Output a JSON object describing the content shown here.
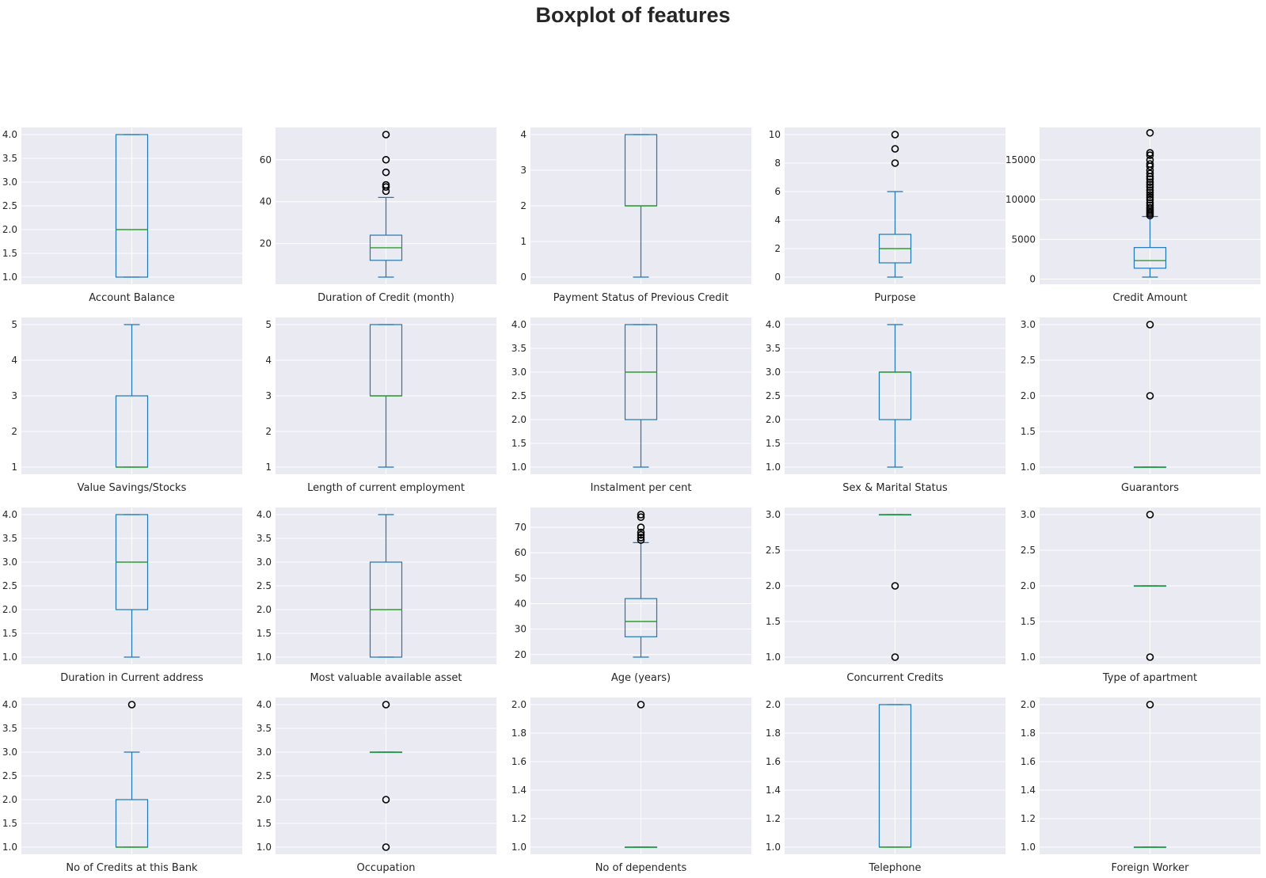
{
  "title": "Boxplot of features",
  "colors": {
    "panel_background": "#eaeaf2",
    "grid": "#ffffff",
    "box": "#1f77b4",
    "median": "#2ca02c",
    "flier": "#000000",
    "text": "#262626"
  },
  "chart_data": [
    {
      "type": "box",
      "xlabel": "Account Balance",
      "ylim": [
        0.85,
        4.15
      ],
      "yticks": [
        1.0,
        1.5,
        2.0,
        2.5,
        3.0,
        3.5,
        4.0
      ],
      "yticklabels": [
        "1.0",
        "1.5",
        "2.0",
        "2.5",
        "3.0",
        "3.5",
        "4.0"
      ],
      "whisker_low": 1,
      "q1": 1,
      "median": 2,
      "q3": 4,
      "whisker_high": 4,
      "outliers": []
    },
    {
      "type": "box",
      "xlabel": "Duration of Credit (month)",
      "ylim": [
        0.6,
        75.4
      ],
      "yticks": [
        20,
        40,
        60
      ],
      "yticklabels": [
        "20",
        "40",
        "60"
      ],
      "whisker_low": 4,
      "q1": 12,
      "median": 18,
      "q3": 24,
      "whisker_high": 42,
      "outliers": [
        45,
        47,
        48,
        54,
        60,
        72
      ]
    },
    {
      "type": "box",
      "xlabel": "Payment Status of Previous Credit",
      "ylim": [
        -0.2,
        4.2
      ],
      "yticks": [
        0,
        1,
        2,
        3,
        4
      ],
      "yticklabels": [
        "0",
        "1",
        "2",
        "3",
        "4"
      ],
      "whisker_low": 0,
      "q1": 2,
      "median": 2,
      "q3": 4,
      "whisker_high": 4,
      "outliers": []
    },
    {
      "type": "box",
      "xlabel": "Purpose",
      "ylim": [
        -0.5,
        10.5
      ],
      "yticks": [
        0,
        2,
        4,
        6,
        8,
        10
      ],
      "yticklabels": [
        "0",
        "2",
        "4",
        "6",
        "8",
        "10"
      ],
      "whisker_low": 0,
      "q1": 1,
      "median": 2,
      "q3": 3,
      "whisker_high": 6,
      "outliers": [
        8,
        9,
        10
      ]
    },
    {
      "type": "box",
      "xlabel": "Credit Amount",
      "ylim": [
        -650,
        19100
      ],
      "yticks": [
        0,
        5000,
        10000,
        15000
      ],
      "yticklabels": [
        "0",
        "5000",
        "10000",
        "15000"
      ],
      "whisker_low": 250,
      "q1": 1366,
      "median": 2320,
      "q3": 3972,
      "whisker_high": 7882,
      "outliers": [
        8000,
        8200,
        8400,
        8600,
        8800,
        9000,
        9300,
        9600,
        10000,
        10300,
        10600,
        10900,
        11200,
        11600,
        11900,
        12200,
        12600,
        12900,
        13300,
        13700,
        14200,
        14500,
        15000,
        15600,
        15900,
        18424
      ]
    },
    {
      "type": "box",
      "xlabel": "Value Savings/Stocks",
      "ylim": [
        0.8,
        5.2
      ],
      "yticks": [
        1,
        2,
        3,
        4,
        5
      ],
      "yticklabels": [
        "1",
        "2",
        "3",
        "4",
        "5"
      ],
      "whisker_low": 1,
      "q1": 1,
      "median": 1,
      "q3": 3,
      "whisker_high": 5,
      "outliers": []
    },
    {
      "type": "box",
      "xlabel": "Length of current employment",
      "ylim": [
        0.8,
        5.2
      ],
      "yticks": [
        1,
        2,
        3,
        4,
        5
      ],
      "yticklabels": [
        "1",
        "2",
        "3",
        "4",
        "5"
      ],
      "whisker_low": 1,
      "q1": 3,
      "median": 3,
      "q3": 5,
      "whisker_high": 5,
      "outliers": []
    },
    {
      "type": "box",
      "xlabel": "Instalment per cent",
      "ylim": [
        0.85,
        4.15
      ],
      "yticks": [
        1.0,
        1.5,
        2.0,
        2.5,
        3.0,
        3.5,
        4.0
      ],
      "yticklabels": [
        "1.0",
        "1.5",
        "2.0",
        "2.5",
        "3.0",
        "3.5",
        "4.0"
      ],
      "whisker_low": 1,
      "q1": 2,
      "median": 3,
      "q3": 4,
      "whisker_high": 4,
      "outliers": []
    },
    {
      "type": "box",
      "xlabel": "Sex & Marital Status",
      "ylim": [
        0.85,
        4.15
      ],
      "yticks": [
        1.0,
        1.5,
        2.0,
        2.5,
        3.0,
        3.5,
        4.0
      ],
      "yticklabels": [
        "1.0",
        "1.5",
        "2.0",
        "2.5",
        "3.0",
        "3.5",
        "4.0"
      ],
      "whisker_low": 1,
      "q1": 2,
      "median": 3,
      "q3": 3,
      "whisker_high": 4,
      "outliers": []
    },
    {
      "type": "box",
      "xlabel": "Guarantors",
      "ylim": [
        0.9,
        3.1
      ],
      "yticks": [
        1.0,
        1.5,
        2.0,
        2.5,
        3.0
      ],
      "yticklabels": [
        "1.0",
        "1.5",
        "2.0",
        "2.5",
        "3.0"
      ],
      "whisker_low": 1,
      "q1": 1,
      "median": 1,
      "q3": 1,
      "whisker_high": 1,
      "outliers": [
        2,
        3
      ]
    },
    {
      "type": "box",
      "xlabel": "Duration in Current address",
      "ylim": [
        0.85,
        4.15
      ],
      "yticks": [
        1.0,
        1.5,
        2.0,
        2.5,
        3.0,
        3.5,
        4.0
      ],
      "yticklabels": [
        "1.0",
        "1.5",
        "2.0",
        "2.5",
        "3.0",
        "3.5",
        "4.0"
      ],
      "whisker_low": 1,
      "q1": 2,
      "median": 3,
      "q3": 4,
      "whisker_high": 4,
      "outliers": []
    },
    {
      "type": "box",
      "xlabel": "Most valuable available asset",
      "ylim": [
        0.85,
        4.15
      ],
      "yticks": [
        1.0,
        1.5,
        2.0,
        2.5,
        3.0,
        3.5,
        4.0
      ],
      "yticklabels": [
        "1.0",
        "1.5",
        "2.0",
        "2.5",
        "3.0",
        "3.5",
        "4.0"
      ],
      "whisker_low": 1,
      "q1": 1,
      "median": 2,
      "q3": 3,
      "whisker_high": 4,
      "outliers": []
    },
    {
      "type": "box",
      "xlabel": "Age (years)",
      "ylim": [
        16.2,
        77.8
      ],
      "yticks": [
        20,
        30,
        40,
        50,
        60,
        70
      ],
      "yticklabels": [
        "20",
        "30",
        "40",
        "50",
        "60",
        "70"
      ],
      "whisker_low": 19,
      "q1": 27,
      "median": 33,
      "q3": 42,
      "whisker_high": 64,
      "outliers": [
        65,
        66,
        67,
        68,
        70,
        74,
        75
      ]
    },
    {
      "type": "box",
      "xlabel": "Concurrent Credits",
      "ylim": [
        0.9,
        3.1
      ],
      "yticks": [
        1.0,
        1.5,
        2.0,
        2.5,
        3.0
      ],
      "yticklabels": [
        "1.0",
        "1.5",
        "2.0",
        "2.5",
        "3.0"
      ],
      "whisker_low": 3,
      "q1": 3,
      "median": 3,
      "q3": 3,
      "whisker_high": 3,
      "outliers": [
        1,
        2
      ]
    },
    {
      "type": "box",
      "xlabel": "Type of apartment",
      "ylim": [
        0.9,
        3.1
      ],
      "yticks": [
        1.0,
        1.5,
        2.0,
        2.5,
        3.0
      ],
      "yticklabels": [
        "1.0",
        "1.5",
        "2.0",
        "2.5",
        "3.0"
      ],
      "whisker_low": 2,
      "q1": 2,
      "median": 2,
      "q3": 2,
      "whisker_high": 2,
      "outliers": [
        1,
        3
      ]
    },
    {
      "type": "box",
      "xlabel": "No of Credits at this Bank",
      "ylim": [
        0.85,
        4.15
      ],
      "yticks": [
        1.0,
        1.5,
        2.0,
        2.5,
        3.0,
        3.5,
        4.0
      ],
      "yticklabels": [
        "1.0",
        "1.5",
        "2.0",
        "2.5",
        "3.0",
        "3.5",
        "4.0"
      ],
      "whisker_low": 1,
      "q1": 1,
      "median": 1,
      "q3": 2,
      "whisker_high": 3,
      "outliers": [
        4
      ]
    },
    {
      "type": "box",
      "xlabel": "Occupation",
      "ylim": [
        0.85,
        4.15
      ],
      "yticks": [
        1.0,
        1.5,
        2.0,
        2.5,
        3.0,
        3.5,
        4.0
      ],
      "yticklabels": [
        "1.0",
        "1.5",
        "2.0",
        "2.5",
        "3.0",
        "3.5",
        "4.0"
      ],
      "whisker_low": 3,
      "q1": 3,
      "median": 3,
      "q3": 3,
      "whisker_high": 3,
      "outliers": [
        1,
        2,
        4
      ]
    },
    {
      "type": "box",
      "xlabel": "No of dependents",
      "ylim": [
        0.95,
        2.05
      ],
      "yticks": [
        1.0,
        1.2,
        1.4,
        1.6,
        1.8,
        2.0
      ],
      "yticklabels": [
        "1.0",
        "1.2",
        "1.4",
        "1.6",
        "1.8",
        "2.0"
      ],
      "whisker_low": 1,
      "q1": 1,
      "median": 1,
      "q3": 1,
      "whisker_high": 1,
      "outliers": [
        2
      ]
    },
    {
      "type": "box",
      "xlabel": "Telephone",
      "ylim": [
        0.95,
        2.05
      ],
      "yticks": [
        1.0,
        1.2,
        1.4,
        1.6,
        1.8,
        2.0
      ],
      "yticklabels": [
        "1.0",
        "1.2",
        "1.4",
        "1.6",
        "1.8",
        "2.0"
      ],
      "whisker_low": 1,
      "q1": 1,
      "median": 1,
      "q3": 2,
      "whisker_high": 2,
      "outliers": []
    },
    {
      "type": "box",
      "xlabel": "Foreign Worker",
      "ylim": [
        0.95,
        2.05
      ],
      "yticks": [
        1.0,
        1.2,
        1.4,
        1.6,
        1.8,
        2.0
      ],
      "yticklabels": [
        "1.0",
        "1.2",
        "1.4",
        "1.6",
        "1.8",
        "2.0"
      ],
      "whisker_low": 1,
      "q1": 1,
      "median": 1,
      "q3": 1,
      "whisker_high": 1,
      "outliers": [
        2
      ]
    }
  ]
}
